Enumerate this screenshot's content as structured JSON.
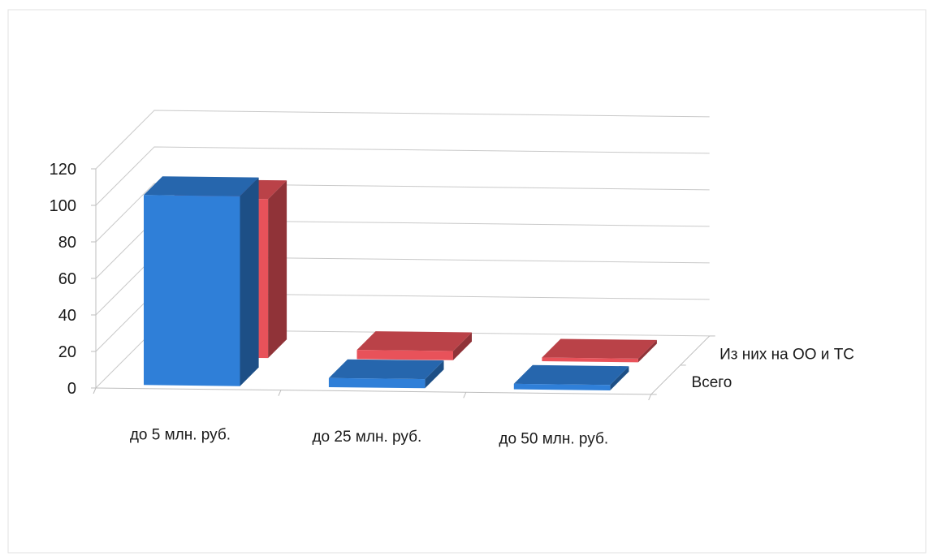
{
  "chart_data": {
    "type": "bar",
    "subtype": "3d-clustered-depth",
    "title": "",
    "xlabel": "",
    "ylabel": "",
    "categories": [
      "до 5 млн. руб.",
      "до 25 млн. руб.",
      "до 50 млн. руб."
    ],
    "series": [
      {
        "name": "Всего",
        "values": [
          104,
          5,
          3
        ],
        "color": "#2f7fd8"
      },
      {
        "name": "Из них на ОО и ТС",
        "values": [
          87,
          5,
          2
        ],
        "color": "#e8525a"
      }
    ],
    "ylim": [
      0,
      120
    ],
    "yticks": [
      0,
      20,
      40,
      60,
      80,
      100,
      120
    ],
    "grid": true,
    "legend": "none"
  }
}
